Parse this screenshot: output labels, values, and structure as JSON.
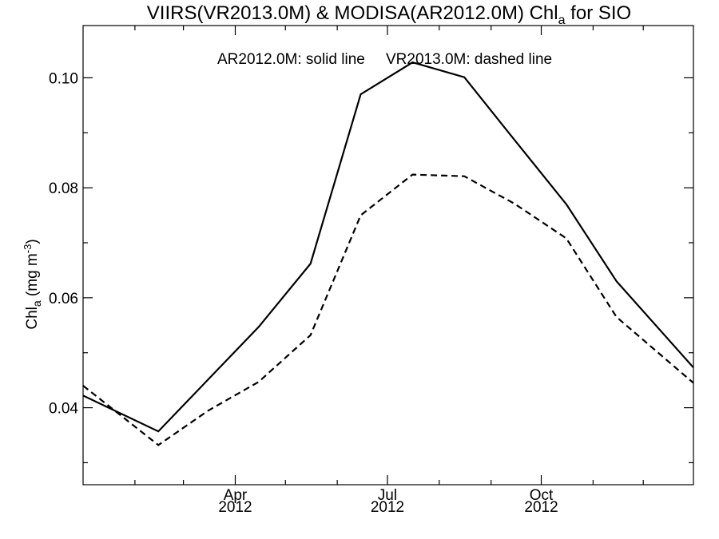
{
  "chart_data": {
    "type": "line",
    "title": {
      "main": "VIIRS(VR2013.0M) & MODISA(AR2012.0M)  Chl",
      "subscript": "a",
      "suffix": " for SIO"
    },
    "ylabel": {
      "main": "Chl",
      "subscript": "a",
      "unit_open": " (mg m",
      "unit_superscript": "-3",
      "unit_close": ")"
    },
    "xlabel": "",
    "xlim": [
      "2012-01-01",
      "2012-12-31"
    ],
    "ylim": [
      0.026,
      0.1095
    ],
    "y_ticks": [
      "0.04",
      "0.06",
      "0.08",
      "0.10"
    ],
    "x_ticks": [
      {
        "date": "2012-04-01",
        "month": "Apr",
        "year": "2012"
      },
      {
        "date": "2012-07-01",
        "month": "Jul",
        "year": "2012"
      },
      {
        "date": "2012-10-01",
        "month": "Oct",
        "year": "2012"
      }
    ],
    "legend_text": {
      "solid": "AR2012.0M: solid line",
      "dashed": "VR2013.0M: dashed line"
    },
    "legend_position": "top-center",
    "grid": false,
    "series": [
      {
        "name": "AR2012.0M",
        "style": "solid",
        "color": "#000000",
        "x": [
          "2012-01-01",
          "2012-02-15",
          "2012-03-16",
          "2012-04-15",
          "2012-05-16",
          "2012-06-15",
          "2012-07-16",
          "2012-08-16",
          "2012-09-15",
          "2012-10-16",
          "2012-11-15",
          "2012-12-31"
        ],
        "values": [
          0.0422,
          0.0357,
          0.0452,
          0.0547,
          0.0662,
          0.097,
          0.1028,
          0.1001,
          0.0887,
          0.077,
          0.063,
          0.0473
        ]
      },
      {
        "name": "VR2013.0M",
        "style": "dashed",
        "color": "#000000",
        "x": [
          "2012-01-01",
          "2012-02-15",
          "2012-03-16",
          "2012-04-15",
          "2012-05-16",
          "2012-06-15",
          "2012-07-16",
          "2012-08-16",
          "2012-09-15",
          "2012-10-16",
          "2012-11-15",
          "2012-12-31"
        ],
        "values": [
          0.044,
          0.0332,
          0.0395,
          0.0447,
          0.0532,
          0.075,
          0.0824,
          0.0821,
          0.0771,
          0.0708,
          0.0565,
          0.0445
        ]
      }
    ]
  }
}
